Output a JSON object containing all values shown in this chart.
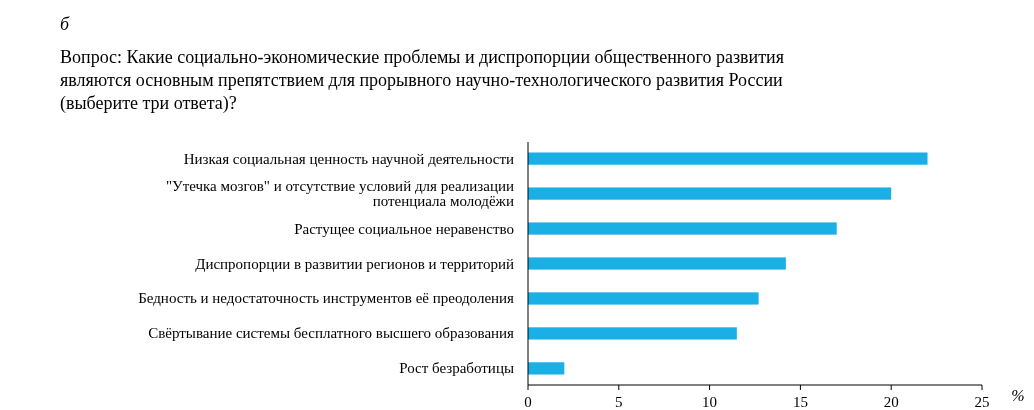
{
  "chart_data": {
    "type": "bar",
    "orientation": "horizontal",
    "title": "Вопрос: Какие социально-экономические проблемы и диспропорции общественного развития являются основным препятствием для прорывного научно-технологического развития России (выберите три ответа)?",
    "annotations": [
      "б"
    ],
    "categories": [
      "Низкая социальная ценность научной деятельности",
      "\"Утечка мозгов\" и отсутствие условий для реализации потенциала молодёжи",
      "Растущее социальное неравенство",
      "Диспропорции в развитии регионов и территорий",
      "Бедность и недостаточность инструментов её преодоления",
      "Свёртывание системы бесплатного высшего образования",
      "Рост безработицы"
    ],
    "values": [
      22,
      20,
      17,
      14.2,
      12.7,
      11.5,
      2
    ],
    "color": "#1ab0e6",
    "xlabel": "%",
    "xlim": [
      0,
      25
    ],
    "xticks": [
      0,
      5,
      10,
      15,
      20,
      25
    ]
  }
}
